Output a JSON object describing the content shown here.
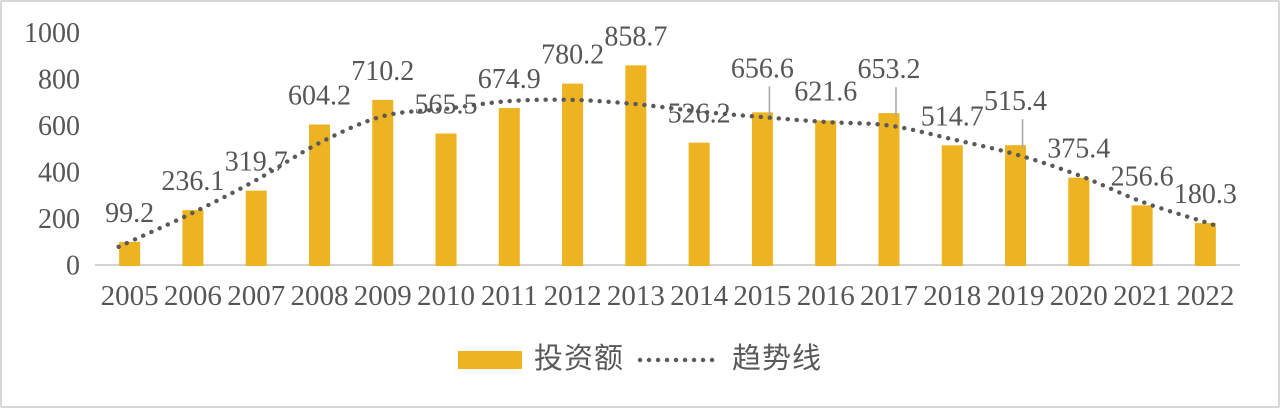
{
  "chart_data": {
    "type": "bar",
    "title": "",
    "xlabel": "",
    "ylabel": "",
    "categories": [
      "2005",
      "2006",
      "2007",
      "2008",
      "2009",
      "2010",
      "2011",
      "2012",
      "2013",
      "2014",
      "2015",
      "2016",
      "2017",
      "2018",
      "2019",
      "2020",
      "2021",
      "2022"
    ],
    "series": [
      {
        "name": "投资额",
        "type": "bar",
        "color": "#EDB320",
        "values": [
          99.2,
          236.1,
          319.7,
          604.2,
          710.2,
          565.5,
          674.9,
          780.2,
          858.7,
          526.2,
          656.6,
          621.6,
          653.2,
          514.7,
          515.4,
          375.4,
          256.6,
          180.3
        ]
      },
      {
        "name": "趋势线",
        "type": "trendline-dotted",
        "color": "#5A5A5A",
        "values": [
          100,
          225,
          365,
          525,
          640,
          672,
          705,
          710,
          692,
          660,
          636,
          615,
          600,
          541,
          476,
          386,
          272,
          184
        ]
      }
    ],
    "data_labels_shown": true,
    "labels_with_leader_lines": [
      "2015",
      "2017",
      "2019"
    ],
    "ylim": [
      0,
      1000
    ],
    "yticks": [
      "0",
      "200",
      "400",
      "600",
      "800",
      "1000"
    ],
    "grid": false,
    "legend_position": "bottom"
  },
  "colors": {
    "bar": "#EDB320",
    "trend_dots": "#5A5A5A",
    "text": "#565656",
    "axis_line": "#D3D3D3",
    "leader_line": "#A9A9A9",
    "background": "#FFFFFF",
    "frame_border": "#D6D6D6"
  }
}
